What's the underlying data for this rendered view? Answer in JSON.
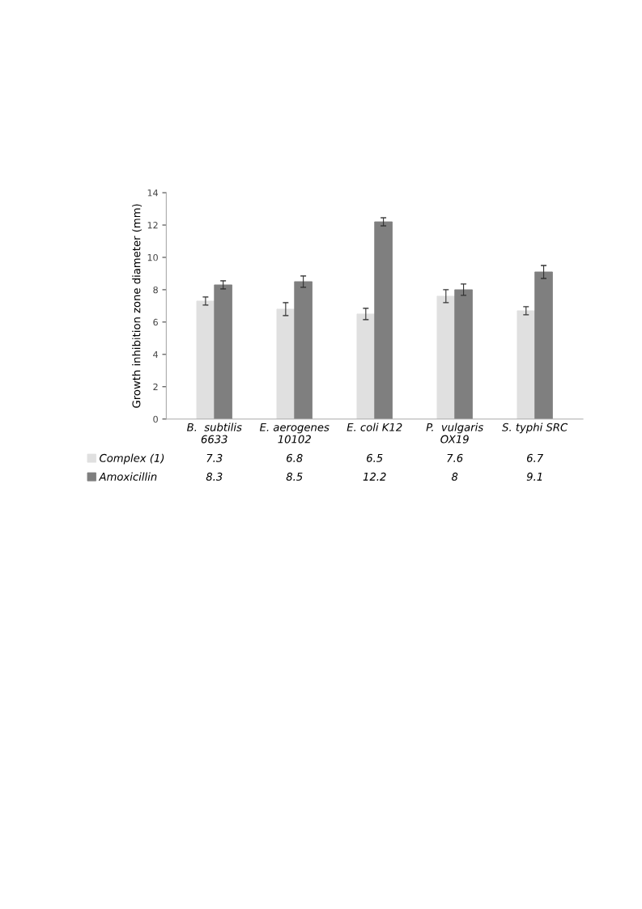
{
  "chart_data": {
    "type": "bar",
    "ylabel": "Growth inhibition zone diameter (mm)",
    "categories": [
      "B.  subtilis\n6633",
      "E. aerogenes\n10102",
      "E. coli K12",
      "P.  vulgaris\nOX19",
      "S. typhi SRC"
    ],
    "series": [
      {
        "name": "Complex (1)",
        "color": "#e0e0e0",
        "values": [
          7.3,
          6.8,
          6.5,
          7.6,
          6.7
        ],
        "errors": [
          0.25,
          0.4,
          0.35,
          0.4,
          0.25
        ]
      },
      {
        "name": "Amoxicillin",
        "color": "#7f7f7f",
        "values": [
          8.3,
          8.5,
          12.2,
          8,
          9.1
        ],
        "errors": [
          0.25,
          0.35,
          0.25,
          0.35,
          0.4
        ]
      }
    ],
    "ylim": [
      0,
      14
    ],
    "yticks": [
      0,
      2,
      4,
      6,
      8,
      10,
      12,
      14
    ],
    "grid": false,
    "legend": "bottom",
    "data_labels": true
  }
}
